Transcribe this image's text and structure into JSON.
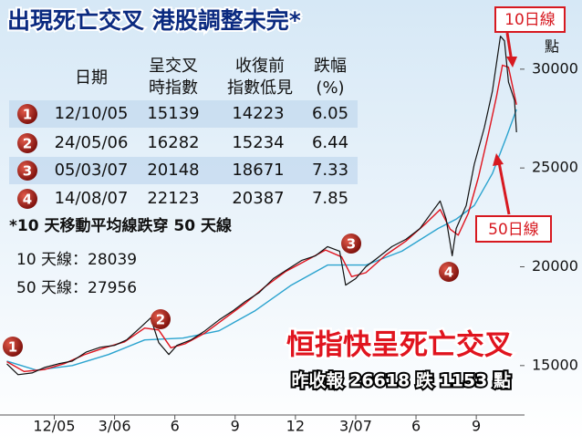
{
  "title": "出現死亡交叉 港股調整未完*",
  "table": {
    "header": [
      [
        "日期"
      ],
      [
        "呈交叉",
        "時指數"
      ],
      [
        "收復前",
        "指數低見"
      ],
      [
        "跌幅",
        "(%)"
      ]
    ],
    "rows": [
      [
        "1",
        "12/10/05",
        "15139",
        "14223",
        "6.05"
      ],
      [
        "2",
        "24/05/06",
        "16282",
        "15234",
        "6.44"
      ],
      [
        "3",
        "05/03/07",
        "20148",
        "18671",
        "7.33"
      ],
      [
        "4",
        "14/08/07",
        "22123",
        "20387",
        "7.85"
      ]
    ]
  },
  "notes": [
    "*10 天移動平均線跌穿 50 天線",
    "10 天線：28039",
    "50 天線：27956"
  ],
  "chart_data": {
    "type": "line",
    "headline": "恒指快呈死亡交叉",
    "subheadline": "昨收報 26618 跌 1153 點",
    "y_unit": "點",
    "xlim": [
      0.3,
      26.4
    ],
    "xticks": [
      {
        "value": 3,
        "label": "12/05"
      },
      {
        "value": 6,
        "label": "3/06"
      },
      {
        "value": 9,
        "label": "6"
      },
      {
        "value": 12,
        "label": "9"
      },
      {
        "value": 15,
        "label": "12"
      },
      {
        "value": 18,
        "label": "3/07"
      },
      {
        "value": 21,
        "label": "6"
      },
      {
        "value": 24,
        "label": "9"
      }
    ],
    "ylim": [
      12500,
      33500
    ],
    "yticks": [
      15000,
      20000,
      25000,
      30000
    ],
    "series": [
      {
        "color": "#111111",
        "x": [
          0.64,
          1.2,
          1.9,
          2.5,
          3.2,
          3.9,
          4.6,
          5.3,
          6.0,
          6.6,
          7.3,
          7.8,
          8.2,
          8.7,
          9.1,
          9.8,
          10.5,
          11.2,
          11.9,
          12.5,
          13.2,
          13.9,
          14.6,
          15.3,
          16.0,
          16.6,
          17.2,
          17.5,
          18.0,
          18.5,
          19.1,
          19.8,
          20.5,
          21.2,
          21.7,
          22.2,
          22.5,
          22.8,
          23.0,
          23.5,
          23.9,
          24.4,
          24.8,
          25.2,
          25.4,
          25.6,
          25.9,
          26.0
        ],
        "values": [
          15090,
          14540,
          14630,
          14900,
          15090,
          15230,
          15690,
          15930,
          16020,
          16300,
          16940,
          17410,
          16160,
          15560,
          16020,
          16300,
          16760,
          17310,
          17780,
          18240,
          18700,
          19400,
          19860,
          20320,
          20560,
          21020,
          20790,
          19070,
          19400,
          20000,
          20460,
          21020,
          21390,
          21940,
          22640,
          23330,
          22410,
          20560,
          21940,
          23100,
          25190,
          27040,
          28890,
          31670,
          31430,
          29350,
          28430,
          26810
        ]
      },
      {
        "name": "10日線",
        "color": "#e0141e",
        "x": [
          0.64,
          1.5,
          2.5,
          3.5,
          4.5,
          5.5,
          6.5,
          7.5,
          8.2,
          8.8,
          9.5,
          10.5,
          11.5,
          12.5,
          13.5,
          14.5,
          15.5,
          16.5,
          17.3,
          17.8,
          18.5,
          19.5,
          20.5,
          21.5,
          22.2,
          22.7,
          23.1,
          23.6,
          24.1,
          24.6,
          25.0,
          25.3,
          25.6,
          26.0
        ],
        "values": [
          15200,
          14700,
          14800,
          15100,
          15550,
          15900,
          16200,
          16900,
          16800,
          15900,
          16100,
          16650,
          17400,
          18150,
          19000,
          19750,
          20300,
          20850,
          20500,
          19500,
          19700,
          20600,
          21300,
          22200,
          22900,
          21900,
          21600,
          22700,
          24500,
          26700,
          28600,
          30200,
          30100,
          28200
        ]
      },
      {
        "name": "50日線",
        "color": "#2aa3cf",
        "x": [
          0.64,
          2.1,
          3.9,
          5.7,
          7.5,
          9.4,
          11.2,
          13.0,
          14.8,
          16.6,
          18.5,
          20.3,
          22.1,
          23.0,
          23.9,
          24.8,
          25.5,
          26.0
        ],
        "values": [
          15230,
          14770,
          15000,
          15560,
          16300,
          16390,
          16760,
          17780,
          19070,
          20090,
          20090,
          20790,
          21940,
          22410,
          23100,
          24720,
          26570,
          27960
        ]
      }
    ]
  }
}
